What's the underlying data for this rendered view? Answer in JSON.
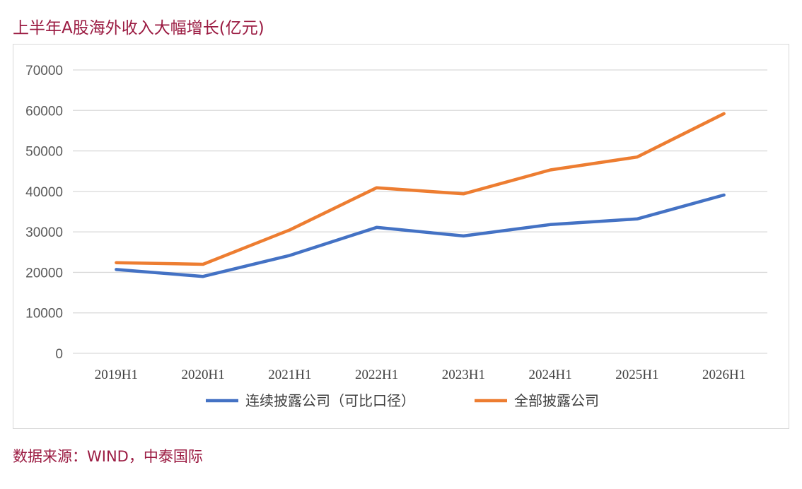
{
  "title": "上半年A股海外收入大幅增长(亿元)",
  "source": "数据来源：WIND，中泰国际",
  "chart_data": {
    "type": "line",
    "categories": [
      "2019H1",
      "2020H1",
      "2021H1",
      "2022H1",
      "2023H1",
      "2024H1",
      "2025H1",
      "2026H1"
    ],
    "series": [
      {
        "name": "连续披露公司（可比口径）",
        "color": "#4472c4",
        "values": [
          20700,
          19000,
          24200,
          31100,
          29000,
          31800,
          33200,
          39100
        ]
      },
      {
        "name": "全部披露公司",
        "color": "#ed7d31",
        "values": [
          22400,
          22000,
          30500,
          40900,
          39400,
          45300,
          48500,
          59200
        ]
      }
    ],
    "yticks": [
      "0",
      "10000",
      "20000",
      "30000",
      "40000",
      "50000",
      "60000",
      "70000"
    ],
    "ylim": [
      0,
      70000
    ],
    "grid": true,
    "gridColor": "#d9d9d9",
    "legend": "bottom"
  }
}
